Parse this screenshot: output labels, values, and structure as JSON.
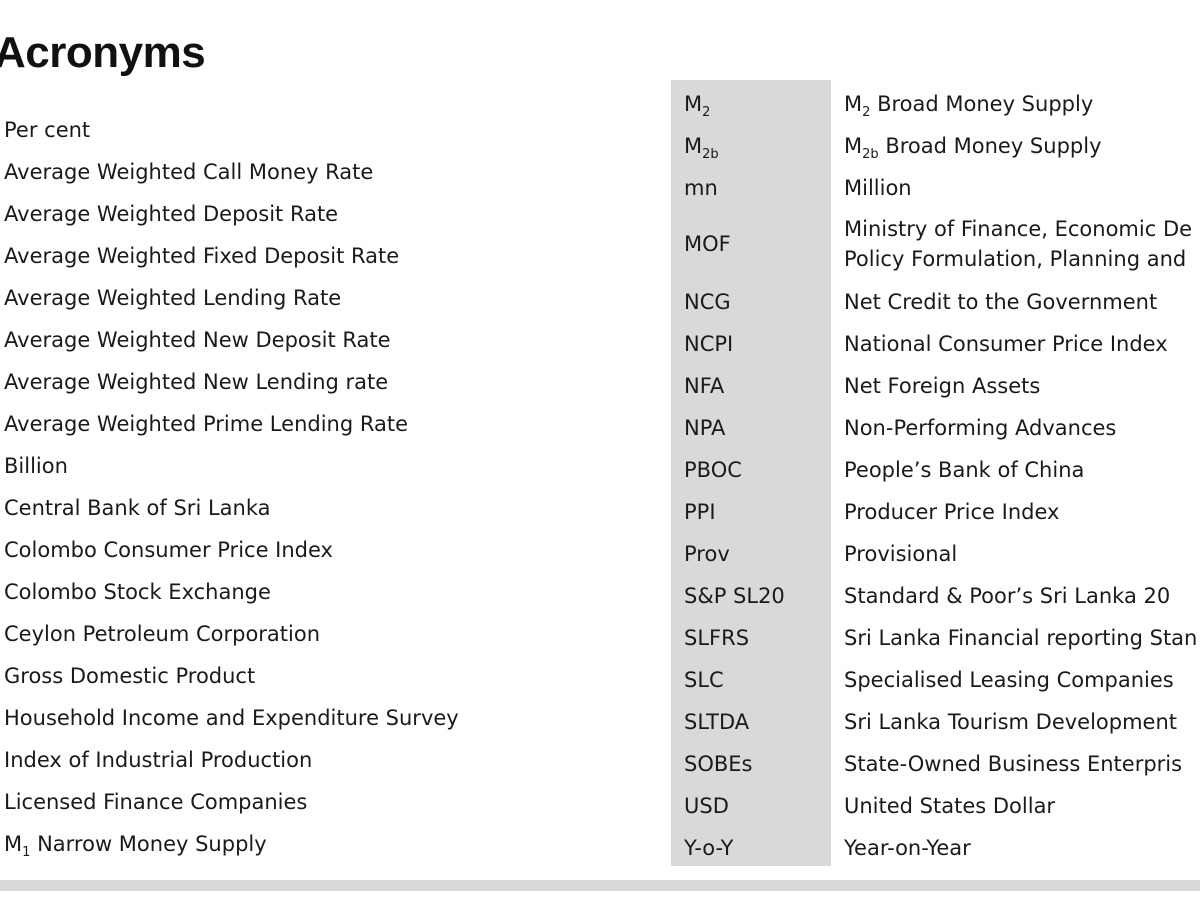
{
  "page": {
    "title": "Acronyms"
  },
  "left_column": [
    "Per cent",
    "Average Weighted Call Money Rate",
    "Average Weighted Deposit Rate",
    "Average Weighted Fixed Deposit Rate",
    "Average Weighted Lending Rate",
    "Average Weighted New Deposit Rate",
    "Average Weighted New Lending rate",
    "Average Weighted Prime Lending Rate",
    "Billion",
    "Central Bank of Sri Lanka",
    "Colombo Consumer Price Index",
    "Colombo Stock Exchange",
    "Ceylon Petroleum Corporation",
    "Gross Domestic Product",
    "Household Income and Expenditure Survey",
    "Index of Industrial Production",
    "Licensed Finance Companies",
    {
      "base": "M",
      "sub": "1",
      "rest": " Narrow Money Supply"
    }
  ],
  "right_table": [
    {
      "abbr": {
        "base": "M",
        "sub": "2"
      },
      "definition": {
        "base": "M",
        "sub": "2",
        "rest": " Broad Money Supply"
      }
    },
    {
      "abbr": {
        "base": "M",
        "sub": "2b"
      },
      "definition": {
        "base": "M",
        "sub": "2b",
        "rest": " Broad Money Supply"
      }
    },
    {
      "abbr": "mn",
      "definition": "Million"
    },
    {
      "abbr": "MOF",
      "definition": [
        "Ministry of Finance, Economic De",
        "Policy Formulation, Planning and"
      ]
    },
    {
      "abbr": "NCG",
      "definition": "Net Credit to the Government"
    },
    {
      "abbr": "NCPI",
      "definition": "National Consumer Price Index"
    },
    {
      "abbr": "NFA",
      "definition": "Net Foreign Assets"
    },
    {
      "abbr": "NPA",
      "definition": "Non-Performing Advances"
    },
    {
      "abbr": "PBOC",
      "definition": "People’s Bank of China"
    },
    {
      "abbr": "PPI",
      "definition": "Producer Price Index"
    },
    {
      "abbr": "Prov",
      "definition": "Provisional"
    },
    {
      "abbr": "S&P SL20",
      "definition": "Standard & Poor’s Sri Lanka 20"
    },
    {
      "abbr": "SLFRS",
      "definition": "Sri Lanka Financial reporting Stan"
    },
    {
      "abbr": "SLC",
      "definition": "Specialised Leasing Companies"
    },
    {
      "abbr": "SLTDA",
      "definition": "Sri Lanka Tourism Development"
    },
    {
      "abbr": "SOBEs",
      "definition": "State-Owned Business Enterpris"
    },
    {
      "abbr": "USD",
      "definition": "United States Dollar"
    },
    {
      "abbr": "Y-o-Y",
      "definition": "Year-on-Year"
    }
  ]
}
